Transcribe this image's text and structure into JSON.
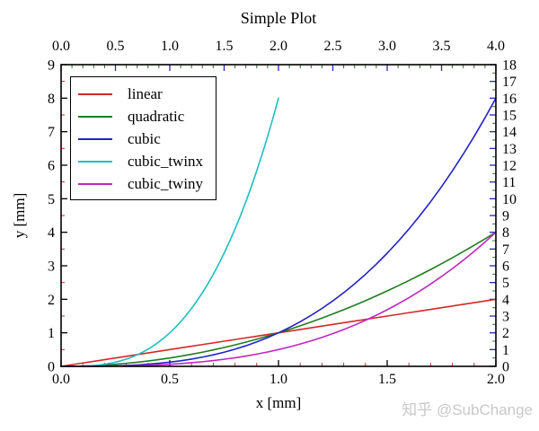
{
  "title": "Simple Plot",
  "watermark": {
    "text": "知乎 @SubChange",
    "color": "#c8c8c8"
  },
  "chart_data": {
    "type": "line",
    "title": "Simple Plot",
    "xlabel": "x [mm]",
    "ylabel": "y [mm]",
    "grid": false,
    "legend_position": "upper left",
    "axes": {
      "bottom": {
        "range": [
          0,
          2
        ],
        "major_step": 0.5,
        "minor_step": 0.1,
        "major_color": "#000000",
        "minor_color": "#cc2a2a",
        "tick_labels": [
          "0.0",
          "0.5",
          "1.0",
          "1.5",
          "2.0"
        ]
      },
      "top": {
        "range": [
          0,
          4
        ],
        "major_step": 0.5,
        "minor_step": 0.1,
        "major_color": "#2828b4",
        "minor_color": "#2d662d",
        "tick_labels": [
          "0.0",
          "0.5",
          "1.0",
          "1.5",
          "2.0",
          "2.5",
          "3.0",
          "3.5",
          "4.0"
        ]
      },
      "left": {
        "range": [
          0,
          9
        ],
        "major_step": 1,
        "minor_step": 0.5,
        "major_color": "#000000",
        "minor_color": "#cc2a2a",
        "tick_labels": [
          "0",
          "1",
          "2",
          "3",
          "4",
          "5",
          "6",
          "7",
          "8",
          "9"
        ]
      },
      "right": {
        "range": [
          0,
          18
        ],
        "major_step": 1,
        "minor_step": 0.5,
        "major_color": "#2828b4",
        "minor_color": "#3a7a3a",
        "tick_labels": [
          "0",
          "1",
          "2",
          "3",
          "4",
          "5",
          "6",
          "7",
          "8",
          "9",
          "10",
          "11",
          "12",
          "13",
          "14",
          "15",
          "16",
          "17",
          "18"
        ]
      }
    },
    "x_shared": [
      0,
      0.05,
      0.1,
      0.15,
      0.2,
      0.25,
      0.3,
      0.35,
      0.4,
      0.45,
      0.5,
      0.55,
      0.6,
      0.65,
      0.7,
      0.75,
      0.8,
      0.85,
      0.9,
      0.95,
      1,
      1.05,
      1.1,
      1.15,
      1.2,
      1.25,
      1.3,
      1.35,
      1.4,
      1.45,
      1.5,
      1.55,
      1.6,
      1.65,
      1.7,
      1.75,
      1.8,
      1.85,
      1.9,
      1.95,
      2
    ],
    "series": [
      {
        "name": "linear",
        "color": "#d42828",
        "x_axis": "bottom",
        "y_axis": "left",
        "y": [
          0,
          0.05,
          0.1,
          0.15,
          0.2,
          0.25,
          0.3,
          0.35,
          0.4,
          0.45,
          0.5,
          0.55,
          0.6,
          0.65,
          0.7,
          0.75,
          0.8,
          0.85,
          0.9,
          0.95,
          1,
          1.05,
          1.1,
          1.15,
          1.2,
          1.25,
          1.3,
          1.35,
          1.4,
          1.45,
          1.5,
          1.55,
          1.6,
          1.65,
          1.7,
          1.75,
          1.8,
          1.85,
          1.9,
          1.95,
          2
        ]
      },
      {
        "name": "quadratic",
        "color": "#1e7d1e",
        "x_axis": "bottom",
        "y_axis": "left",
        "y": [
          0,
          0.0025,
          0.01,
          0.0225,
          0.04,
          0.0625,
          0.09,
          0.1225,
          0.16,
          0.2025,
          0.25,
          0.3025,
          0.36,
          0.4225,
          0.49,
          0.5625,
          0.64,
          0.7225,
          0.81,
          0.9025,
          1,
          1.1025,
          1.21,
          1.3225,
          1.44,
          1.5625,
          1.69,
          1.8225,
          1.96,
          2.1025,
          2.25,
          2.4025,
          2.56,
          2.7225,
          2.89,
          3.0625,
          3.24,
          3.4225,
          3.61,
          3.8025,
          4
        ]
      },
      {
        "name": "cubic",
        "color": "#2222cc",
        "x_axis": "bottom",
        "y_axis": "left",
        "y": [
          0,
          0.0001,
          0.001,
          0.0034,
          0.008,
          0.0156,
          0.027,
          0.0429,
          0.064,
          0.0911,
          0.125,
          0.1664,
          0.216,
          0.2746,
          0.343,
          0.4219,
          0.512,
          0.6141,
          0.729,
          0.8574,
          1,
          1.1576,
          1.331,
          1.5209,
          1.728,
          1.9531,
          2.197,
          2.4604,
          2.744,
          3.0486,
          3.375,
          3.7239,
          4.096,
          4.4921,
          4.913,
          5.3594,
          5.832,
          6.3316,
          6.859,
          7.4149,
          8
        ]
      },
      {
        "name": "cubic_twinx",
        "color": "#1fbfbf",
        "x_axis": "top",
        "y_axis": "left",
        "y": [
          0,
          0.0001,
          0.001,
          0.0034,
          0.008,
          0.0156,
          0.027,
          0.0429,
          0.064,
          0.0911,
          0.125,
          0.1664,
          0.216,
          0.2746,
          0.343,
          0.4219,
          0.512,
          0.6141,
          0.729,
          0.8574,
          1,
          1.1576,
          1.331,
          1.5209,
          1.728,
          1.9531,
          2.197,
          2.4604,
          2.744,
          3.0486,
          3.375,
          3.7239,
          4.096,
          4.4921,
          4.913,
          5.3594,
          5.832,
          6.3316,
          6.859,
          7.4149,
          8
        ]
      },
      {
        "name": "cubic_twiny",
        "color": "#bf26bf",
        "x_axis": "bottom",
        "y_axis": "right",
        "y": [
          0,
          0.0001,
          0.001,
          0.0034,
          0.008,
          0.0156,
          0.027,
          0.0429,
          0.064,
          0.0911,
          0.125,
          0.1664,
          0.216,
          0.2746,
          0.343,
          0.4219,
          0.512,
          0.6141,
          0.729,
          0.8574,
          1,
          1.1576,
          1.331,
          1.5209,
          1.728,
          1.9531,
          2.197,
          2.4604,
          2.744,
          3.0486,
          3.375,
          3.7239,
          4.096,
          4.4921,
          4.913,
          5.3594,
          5.832,
          6.3316,
          6.859,
          7.4149,
          8
        ]
      }
    ]
  }
}
